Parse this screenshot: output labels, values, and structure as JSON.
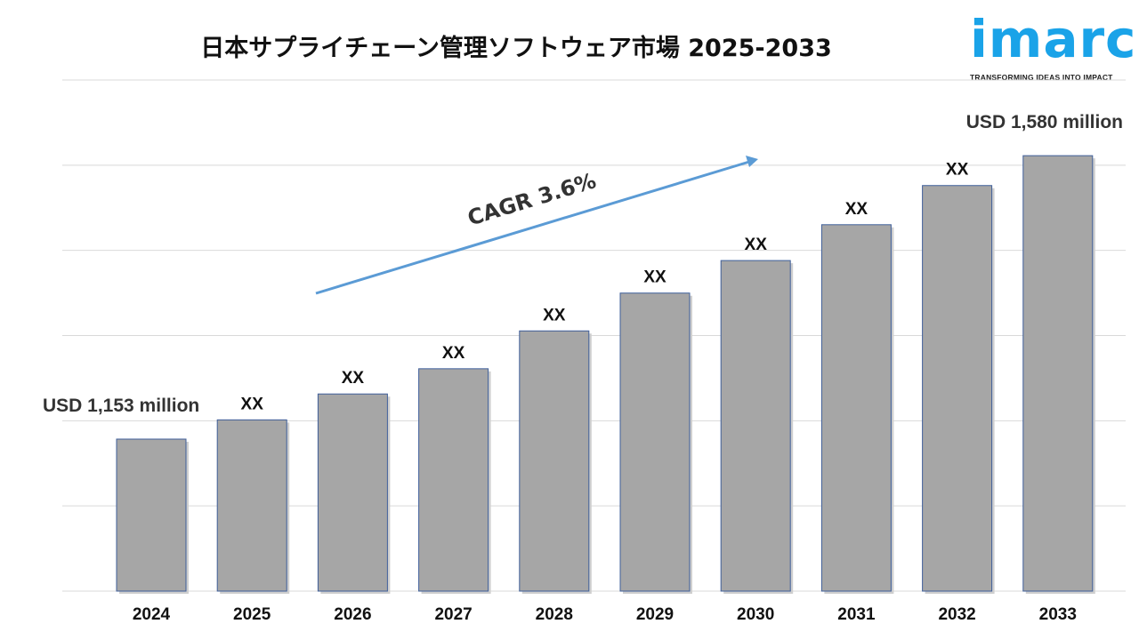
{
  "title": "日本サプライチェーン管理ソフトウェア市場 2025-2033",
  "logo": {
    "word": "imarc",
    "tagline": "TRANSFORMING IDEAS INTO IMPACT",
    "color": "#1aa3e8"
  },
  "chart_data": {
    "type": "bar",
    "title": "日本サプライチェーン管理ソフトウェア市場 2025-2033",
    "categories": [
      "2024",
      "2025",
      "2026",
      "2027",
      "2028",
      "2029",
      "2030",
      "2031",
      "2032",
      "2033"
    ],
    "values": [
      1153,
      1182,
      1221,
      1259,
      1316,
      1373,
      1422,
      1476,
      1535,
      1580
    ],
    "data_labels": [
      "USD 1,153 million",
      "XX",
      "XX",
      "XX",
      "XX",
      "XX",
      "XX",
      "XX",
      "XX",
      "USD 1,580 million"
    ],
    "annotation": "CAGR 3.6%",
    "ylim": [
      924,
      1694
    ],
    "grid": true,
    "bar_color": "#a6a6a6",
    "bar_edge_color": "#3f5f9a",
    "arrow_color": "#5b9bd5",
    "xlabel": "",
    "ylabel": ""
  }
}
